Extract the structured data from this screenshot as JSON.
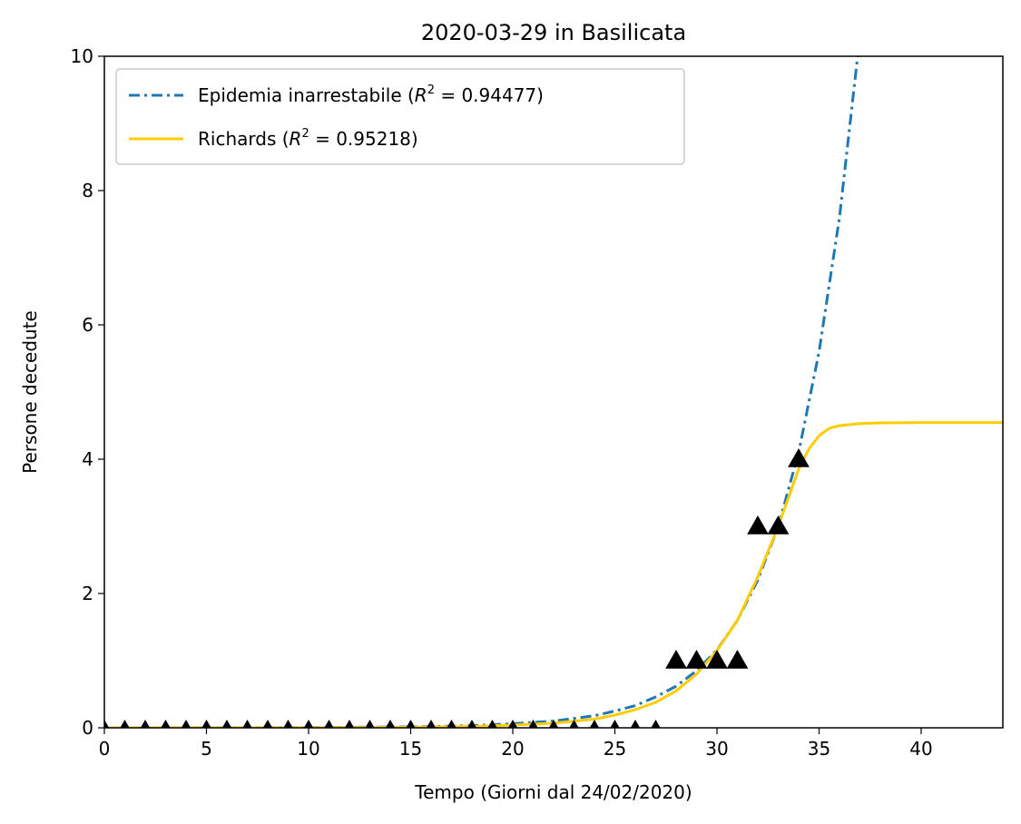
{
  "chart_data": {
    "type": "line",
    "title": "2020-03-29 in Basilicata",
    "xlabel": "Tempo (Giorni dal 24/02/2020)",
    "ylabel": "Persone decedute",
    "xlim": [
      0,
      44
    ],
    "ylim": [
      0,
      10
    ],
    "xticks": [
      0,
      5,
      10,
      15,
      20,
      25,
      30,
      35,
      40
    ],
    "yticks": [
      0,
      2,
      4,
      6,
      8,
      10
    ],
    "xtick_labels": [
      "0",
      "5",
      "10",
      "15",
      "20",
      "25",
      "30",
      "35",
      "40"
    ],
    "ytick_labels": [
      "0",
      "2",
      "4",
      "6",
      "8",
      "10"
    ],
    "grid": false,
    "legend_position": "top-left",
    "series": [
      {
        "name_prefix": "Epidemia inarrestabile (",
        "name_r2": "R",
        "name_sup": "2",
        "name_value": " = 0.94477)",
        "style": "dashdot",
        "color": "#1f77b4",
        "x": [
          0,
          5,
          10,
          15,
          18,
          20,
          22,
          24,
          25,
          26,
          27,
          28,
          29,
          30,
          31,
          32,
          33,
          34,
          35,
          36,
          37
        ],
        "y": [
          0.0003,
          0.001,
          0.004,
          0.014,
          0.032,
          0.06,
          0.1,
          0.18,
          0.25,
          0.33,
          0.46,
          0.62,
          0.85,
          1.16,
          1.6,
          2.2,
          3.0,
          4.1,
          5.6,
          7.6,
          10.3
        ]
      },
      {
        "name_prefix": "Richards (",
        "name_r2": "R",
        "name_sup": "2",
        "name_value": " = 0.95218)",
        "style": "solid",
        "color": "#ffcc00",
        "x": [
          0,
          10,
          15,
          18,
          20,
          22,
          24,
          25,
          26,
          27,
          28,
          29,
          30,
          31,
          32,
          33,
          34,
          34.5,
          35,
          35.5,
          36,
          37,
          38,
          40,
          44
        ],
        "y": [
          0,
          0.002,
          0.008,
          0.02,
          0.04,
          0.07,
          0.13,
          0.19,
          0.27,
          0.38,
          0.55,
          0.8,
          1.15,
          1.6,
          2.25,
          3.0,
          3.85,
          4.15,
          4.35,
          4.46,
          4.5,
          4.53,
          4.54,
          4.545,
          4.545
        ]
      }
    ],
    "observed": {
      "marker": "triangle",
      "color": "#000000",
      "small_x": [
        0,
        1,
        2,
        3,
        4,
        5,
        6,
        7,
        8,
        9,
        10,
        11,
        12,
        13,
        14,
        15,
        16,
        17,
        18,
        19,
        20,
        21,
        22,
        23,
        24,
        25,
        26,
        27
      ],
      "small_y": [
        0,
        0,
        0,
        0,
        0,
        0,
        0,
        0,
        0,
        0,
        0,
        0,
        0,
        0,
        0,
        0,
        0,
        0,
        0,
        0,
        0,
        0,
        0,
        0,
        0,
        0,
        0,
        0
      ],
      "large_x": [
        28,
        29,
        30,
        31,
        32,
        33,
        34
      ],
      "large_y": [
        1,
        1,
        1,
        1,
        3,
        3,
        4
      ]
    }
  }
}
